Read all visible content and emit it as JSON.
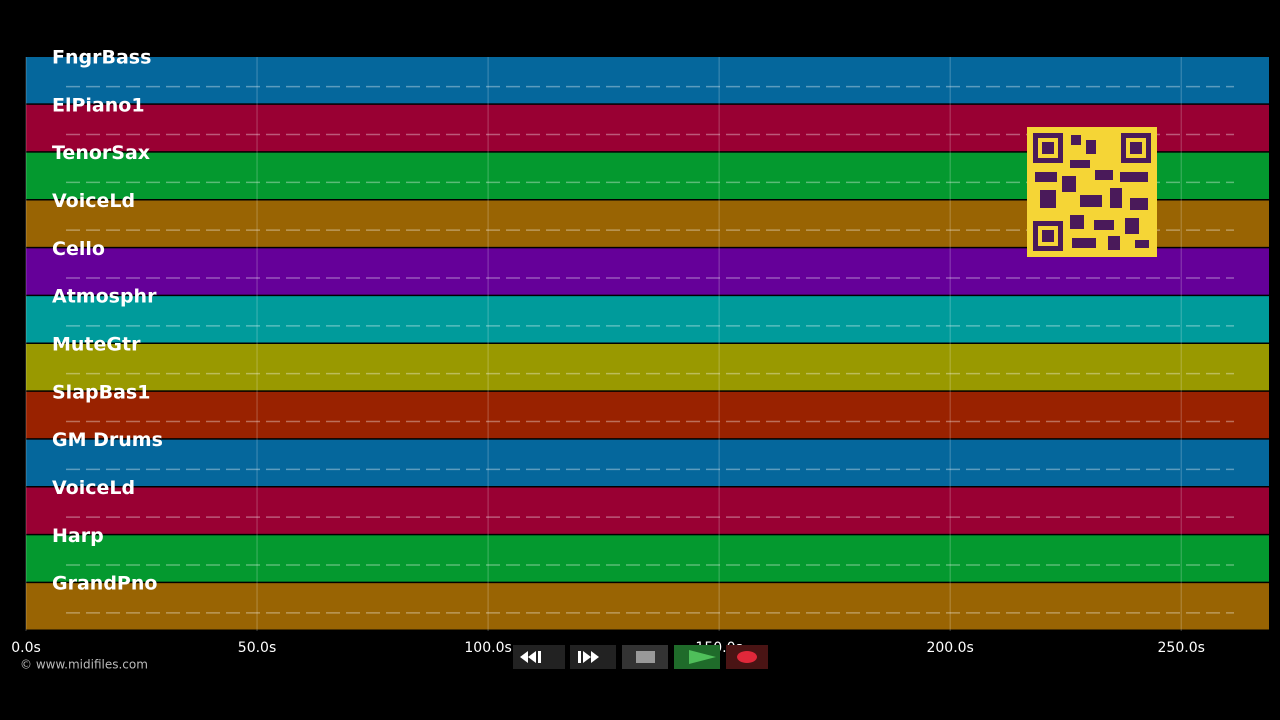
{
  "tracks": [
    {
      "name": "FngrBass",
      "color": "#05679c"
    },
    {
      "name": "ElPiano1",
      "color": "#990033"
    },
    {
      "name": "TenorSax",
      "color": "#04992f"
    },
    {
      "name": "VoiceLd",
      "color": "#996403"
    },
    {
      "name": "Cello",
      "color": "#650099"
    },
    {
      "name": "Atmosphr",
      "color": "#009b9b"
    },
    {
      "name": "MuteGtr",
      "color": "#999900"
    },
    {
      "name": "SlapBas1",
      "color": "#992200"
    },
    {
      "name": "GM Drums",
      "color": "#05679c"
    },
    {
      "name": "VoiceLd",
      "color": "#990033"
    },
    {
      "name": "Harp",
      "color": "#04992f"
    },
    {
      "name": "GrandPno",
      "color": "#996403"
    }
  ],
  "time_axis": {
    "xlim": [
      0,
      269
    ],
    "ticks": [
      {
        "value": 0,
        "label": "0.0s"
      },
      {
        "value": 50,
        "label": "50.0s"
      },
      {
        "value": 100,
        "label": "100.0s"
      },
      {
        "value": 150,
        "label": "150.0s"
      },
      {
        "value": 200,
        "label": "200.0s"
      },
      {
        "value": 250,
        "label": "250.0s"
      }
    ]
  },
  "footer": {
    "copyright": "© www.midifiles.com"
  }
}
